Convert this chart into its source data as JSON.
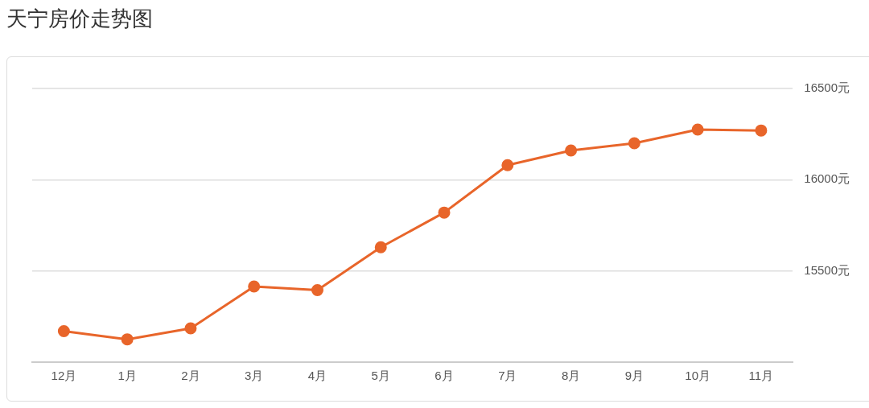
{
  "chart_data": {
    "type": "line",
    "title": "天宁房价走势图",
    "categories": [
      "12月",
      "1月",
      "2月",
      "3月",
      "4月",
      "5月",
      "6月",
      "7月",
      "8月",
      "9月",
      "10月",
      "11月"
    ],
    "series": [
      {
        "color": "#e8652a",
        "values": [
          15170,
          15125,
          15185,
          15415,
          15395,
          15630,
          15820,
          16080,
          16160,
          16200,
          16275,
          16270
        ]
      }
    ],
    "ylim": [
      15000,
      16500
    ],
    "yticks": [
      {
        "value": 15000,
        "label": null
      },
      {
        "value": 15500,
        "label": "15500元"
      },
      {
        "value": 16000,
        "label": "16000元"
      },
      {
        "value": 16500,
        "label": "16500元"
      }
    ],
    "grid": "y",
    "legend": false,
    "marker": "circle",
    "line_style": "solid"
  }
}
